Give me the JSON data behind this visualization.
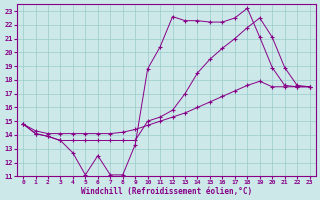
{
  "background_color": "#cce8e8",
  "grid_color": "#99cccc",
  "line_color": "#880088",
  "marker": "D",
  "xlabel": "Windchill (Refroidissement éolien,°C)",
  "xlim": [
    -0.5,
    23.5
  ],
  "ylim": [
    11,
    23.5
  ],
  "yticks": [
    11,
    12,
    13,
    14,
    15,
    16,
    17,
    18,
    19,
    20,
    21,
    22,
    23
  ],
  "xticks": [
    0,
    1,
    2,
    3,
    4,
    5,
    6,
    7,
    8,
    9,
    10,
    11,
    12,
    13,
    14,
    15,
    16,
    17,
    18,
    19,
    20,
    21,
    22,
    23
  ],
  "line1_x": [
    0,
    1,
    2,
    3,
    4,
    5,
    6,
    7,
    8,
    9,
    10,
    11,
    12,
    13,
    14,
    15,
    16,
    17,
    18,
    19,
    20,
    21,
    22,
    23
  ],
  "line1_y": [
    14.8,
    14.1,
    13.9,
    13.6,
    12.7,
    11.1,
    12.5,
    11.1,
    11.1,
    13.3,
    18.8,
    20.4,
    22.6,
    22.3,
    22.3,
    22.2,
    22.2,
    22.5,
    23.2,
    21.1,
    18.9,
    17.6,
    17.5,
    17.5
  ],
  "line2_x": [
    0,
    1,
    2,
    3,
    4,
    5,
    6,
    7,
    8,
    9,
    10,
    11,
    12,
    13,
    14,
    15,
    16,
    17,
    18,
    19,
    20,
    21,
    22,
    23
  ],
  "line2_y": [
    14.8,
    14.1,
    13.9,
    13.6,
    13.6,
    13.6,
    13.6,
    13.6,
    13.6,
    13.6,
    15.0,
    15.3,
    15.8,
    17.0,
    18.5,
    19.5,
    20.3,
    21.0,
    21.8,
    22.5,
    21.1,
    18.9,
    17.6,
    17.5
  ],
  "line3_x": [
    0,
    1,
    2,
    3,
    4,
    5,
    6,
    7,
    8,
    9,
    10,
    11,
    12,
    13,
    14,
    15,
    16,
    17,
    18,
    19,
    20,
    21,
    22,
    23
  ],
  "line3_y": [
    14.8,
    14.3,
    14.1,
    14.1,
    14.1,
    14.1,
    14.1,
    14.1,
    14.2,
    14.4,
    14.7,
    15.0,
    15.3,
    15.6,
    16.0,
    16.4,
    16.8,
    17.2,
    17.6,
    17.9,
    17.5,
    17.5,
    17.5,
    17.5
  ]
}
